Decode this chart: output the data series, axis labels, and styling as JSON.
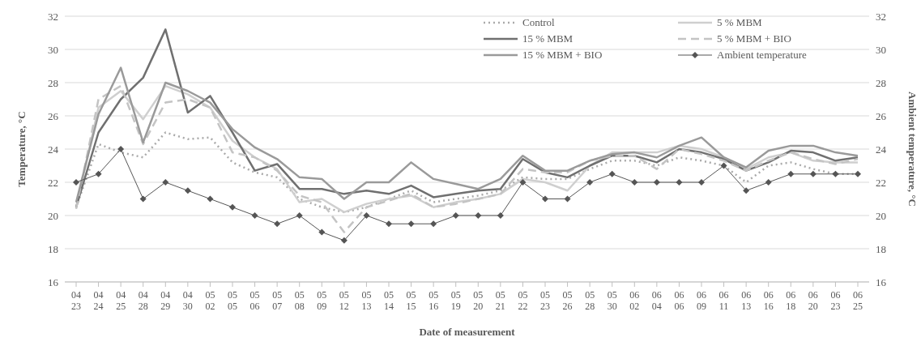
{
  "chart_data": {
    "type": "line",
    "xlabel": "Date of measurement",
    "ylabel": "Temperature, °C",
    "y2label": "Ambient temperature, °C",
    "categories": [
      "04 23",
      "04 24",
      "04 25",
      "04 28",
      "04 29",
      "04 30",
      "05 02",
      "05 05",
      "05 06",
      "05 07",
      "05 08",
      "05 09",
      "05 12",
      "05 13",
      "05 14",
      "05 15",
      "05 16",
      "05 19",
      "05 20",
      "05 21",
      "05 22",
      "05 23",
      "05 26",
      "05 28",
      "05 30",
      "06 02",
      "06 04",
      "06 06",
      "06 09",
      "06 11",
      "06 13",
      "06 16",
      "06 18",
      "06 20",
      "06 23",
      "06 25"
    ],
    "ylim": [
      16,
      32
    ],
    "yticks": [
      16,
      18,
      20,
      22,
      24,
      26,
      28,
      30,
      32
    ],
    "y2lim": [
      16,
      32
    ],
    "y2ticks": [
      16,
      18,
      20,
      22,
      24,
      26,
      28,
      30,
      32
    ],
    "grid": "y",
    "legend": "top right",
    "marker": "none",
    "series": [
      {
        "name": "Control",
        "color": "#aaaaaa",
        "line_style": "dotted",
        "values": [
          20.5,
          24.3,
          23.8,
          23.5,
          25,
          24.6,
          24.7,
          23.2,
          22.6,
          22.3,
          21,
          20.5,
          20.2,
          20.5,
          21,
          21.5,
          20.8,
          21,
          21.2,
          21.5,
          22.3,
          22.2,
          22.2,
          22.8,
          23.3,
          23.3,
          23,
          23.5,
          23.3,
          23,
          22,
          23,
          23.2,
          22.8,
          22.5,
          22.5
        ]
      },
      {
        "name": "5 % MBM",
        "color": "#cfcfcf",
        "line_style": "solid",
        "values": [
          20.5,
          26.5,
          27.5,
          25.8,
          27.8,
          27.3,
          26.5,
          24.5,
          23.5,
          22.8,
          20.8,
          21,
          20.2,
          20.7,
          21,
          21.2,
          20.5,
          20.8,
          21,
          21.3,
          22.2,
          22,
          21.5,
          23,
          23.8,
          23.8,
          23.8,
          24.2,
          24,
          23.5,
          22.8,
          23.5,
          23.8,
          23.3,
          23.2,
          23.2
        ]
      },
      {
        "name": "15 % MBM",
        "color": "#707070",
        "line_style": "solid",
        "values": [
          20.5,
          25,
          27,
          28.3,
          31.2,
          26.2,
          27.2,
          25,
          22.7,
          23.1,
          21.6,
          21.6,
          21.3,
          21.5,
          21.3,
          21.8,
          21.1,
          21.3,
          21.5,
          21.6,
          23.4,
          22.6,
          22.3,
          23,
          23.6,
          23.6,
          23.2,
          24,
          23.8,
          23.4,
          22.7,
          23.2,
          23.9,
          23.8,
          23.3,
          23.5
        ]
      },
      {
        "name": "5 % MBM + BIO",
        "color": "#c4c4c4",
        "line_style": "dashed",
        "values": [
          20.4,
          27,
          27.8,
          24.3,
          26.8,
          27,
          26.5,
          23.8,
          23.5,
          22.7,
          21.2,
          20.8,
          19,
          20.5,
          20.9,
          21.3,
          20.5,
          20.7,
          21,
          21.3,
          22.8,
          22.6,
          22.6,
          23.3,
          23.6,
          23.6,
          22.8,
          24,
          23.7,
          23.3,
          22.7,
          23.3,
          23.8,
          23.4,
          23.1,
          23.4
        ]
      },
      {
        "name": "15 % MBM + BIO",
        "color": "#9a9a9a",
        "line_style": "solid",
        "values": [
          20.8,
          26.1,
          28.9,
          24.4,
          28,
          27.5,
          26.8,
          25.2,
          24.1,
          23.4,
          22.3,
          22.2,
          21,
          22,
          22,
          23.2,
          22.2,
          21.9,
          21.6,
          22.2,
          23.6,
          22.7,
          22.7,
          23.3,
          23.7,
          23.8,
          23.5,
          24.2,
          24.7,
          23.5,
          22.9,
          23.9,
          24.2,
          24.2,
          23.8,
          23.6
        ]
      },
      {
        "name": "Ambient  temperature",
        "color": "#555555",
        "axis": "y2",
        "marker": "diamond",
        "line_style": "solid",
        "values": [
          22,
          22.5,
          24,
          21,
          22,
          21.5,
          21,
          20.5,
          20,
          19.5,
          20,
          19,
          18.5,
          20,
          19.5,
          19.5,
          19.5,
          20,
          20,
          20,
          22,
          21,
          21,
          22,
          22.5,
          22,
          22,
          22,
          22,
          23,
          21.5,
          22,
          22.5,
          22.5,
          22.5,
          22.5
        ]
      }
    ]
  }
}
